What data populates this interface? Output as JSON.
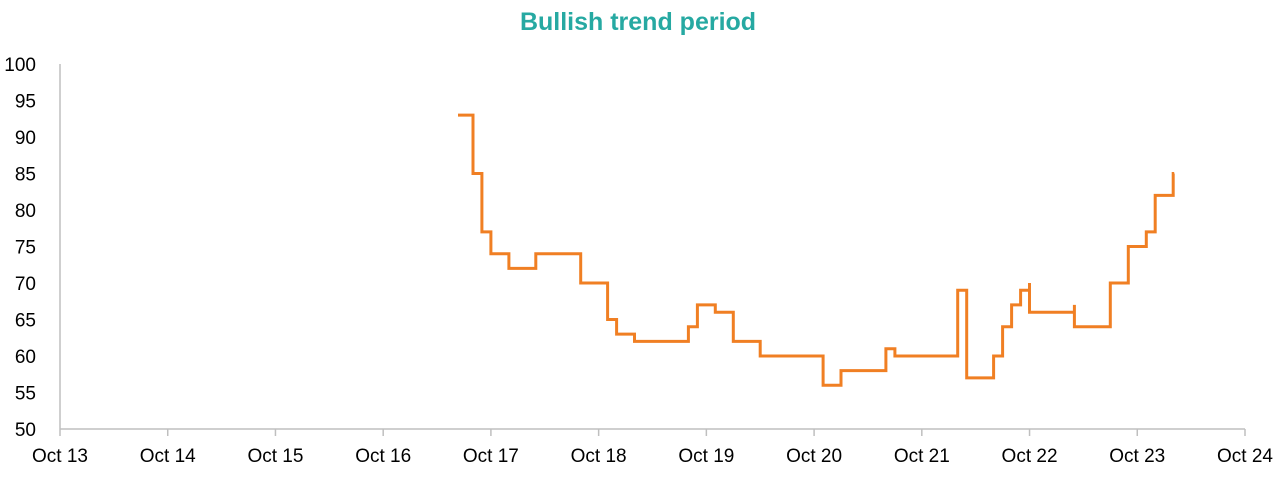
{
  "chart_data": {
    "type": "line",
    "title": "Bullish trend period",
    "xlabel": "",
    "ylabel": "",
    "ylim": [
      50,
      100
    ],
    "yticks": [
      50,
      55,
      60,
      65,
      70,
      75,
      80,
      85,
      90,
      95,
      100
    ],
    "xlim": [
      "2013-10",
      "2024-10"
    ],
    "xticks": [
      "Oct 13",
      "Oct 14",
      "Oct 15",
      "Oct 16",
      "Oct 17",
      "Oct 18",
      "Oct 19",
      "Oct 20",
      "Oct 21",
      "Oct 22",
      "Oct 23",
      "Oct 24"
    ],
    "grid": false,
    "legend": "none",
    "series": [
      {
        "color": "#F07F23",
        "step": true,
        "points": [
          [
            "2017-07",
            93
          ],
          [
            "2017-08",
            85
          ],
          [
            "2017-09",
            77
          ],
          [
            "2017-10",
            74
          ],
          [
            "2017-12",
            72
          ],
          [
            "2018-03",
            74
          ],
          [
            "2018-08",
            70
          ],
          [
            "2018-11",
            65
          ],
          [
            "2018-12",
            63
          ],
          [
            "2019-02",
            62
          ],
          [
            "2019-08",
            64
          ],
          [
            "2019-09",
            67
          ],
          [
            "2019-11",
            66
          ],
          [
            "2020-01",
            62
          ],
          [
            "2020-04",
            60
          ],
          [
            "2020-11",
            56
          ],
          [
            "2021-01",
            58
          ],
          [
            "2021-06",
            61
          ],
          [
            "2021-07",
            60
          ],
          [
            "2022-02",
            69
          ],
          [
            "2022-03",
            57
          ],
          [
            "2022-06",
            60
          ],
          [
            "2022-07",
            64
          ],
          [
            "2022-08",
            67
          ],
          [
            "2022-09",
            69
          ],
          [
            "2022-10",
            70
          ],
          [
            "2022-10",
            66
          ],
          [
            "2023-03",
            67
          ],
          [
            "2023-03",
            64
          ],
          [
            "2023-07",
            70
          ],
          [
            "2023-09",
            75
          ],
          [
            "2023-11",
            77
          ],
          [
            "2023-12",
            82
          ],
          [
            "2024-02",
            85
          ]
        ]
      }
    ]
  },
  "colors": {
    "title": "#26A9A2",
    "line": "#F07F23",
    "axis": "#BFBFBF"
  }
}
